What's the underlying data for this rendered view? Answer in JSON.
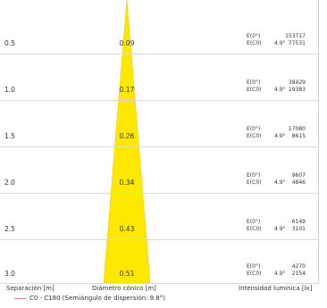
{
  "colors": {
    "cone_fill": "#ffe800",
    "cone_stroke": "#f0c800",
    "legend_line": "#e07a7a",
    "gridline": "#d9d9d9"
  },
  "rows": [
    {
      "separation": "0.5",
      "diameter": "0.09",
      "e0_label": "E(0°)",
      "ec0_label": "E(C0)",
      "angle": "4.9°",
      "e0": "153717",
      "ec0": "77531"
    },
    {
      "separation": "1.0",
      "diameter": "0.17",
      "e0_label": "E(0°)",
      "ec0_label": "E(C0)",
      "angle": "4.9°",
      "e0": "38429",
      "ec0": "19383"
    },
    {
      "separation": "1.5",
      "diameter": "0.26",
      "e0_label": "E(0°)",
      "ec0_label": "E(C0)",
      "angle": "4.9°",
      "e0": "17080",
      "ec0": "8615"
    },
    {
      "separation": "2.0",
      "diameter": "0.34",
      "e0_label": "E(0°)",
      "ec0_label": "E(C0)",
      "angle": "4.9°",
      "e0": "9607",
      "ec0": "4846"
    },
    {
      "separation": "2.5",
      "diameter": "0.43",
      "e0_label": "E(0°)",
      "ec0_label": "E(C0)",
      "angle": "4.9°",
      "e0": "6149",
      "ec0": "3101"
    },
    {
      "separation": "3.0",
      "diameter": "0.51",
      "e0_label": "E(0°)",
      "ec0_label": "E(C0)",
      "angle": "4.9°",
      "e0": "4270",
      "ec0": "2154"
    }
  ],
  "axis": {
    "separation_label": "Separación [m]",
    "diameter_label": "Diámetro cónico [m]",
    "intensity_label": "Intensidad lumínica [lx]"
  },
  "legend": {
    "text": "C0 - C180 (Semiángulo de dispersión: 9.8°)"
  }
}
